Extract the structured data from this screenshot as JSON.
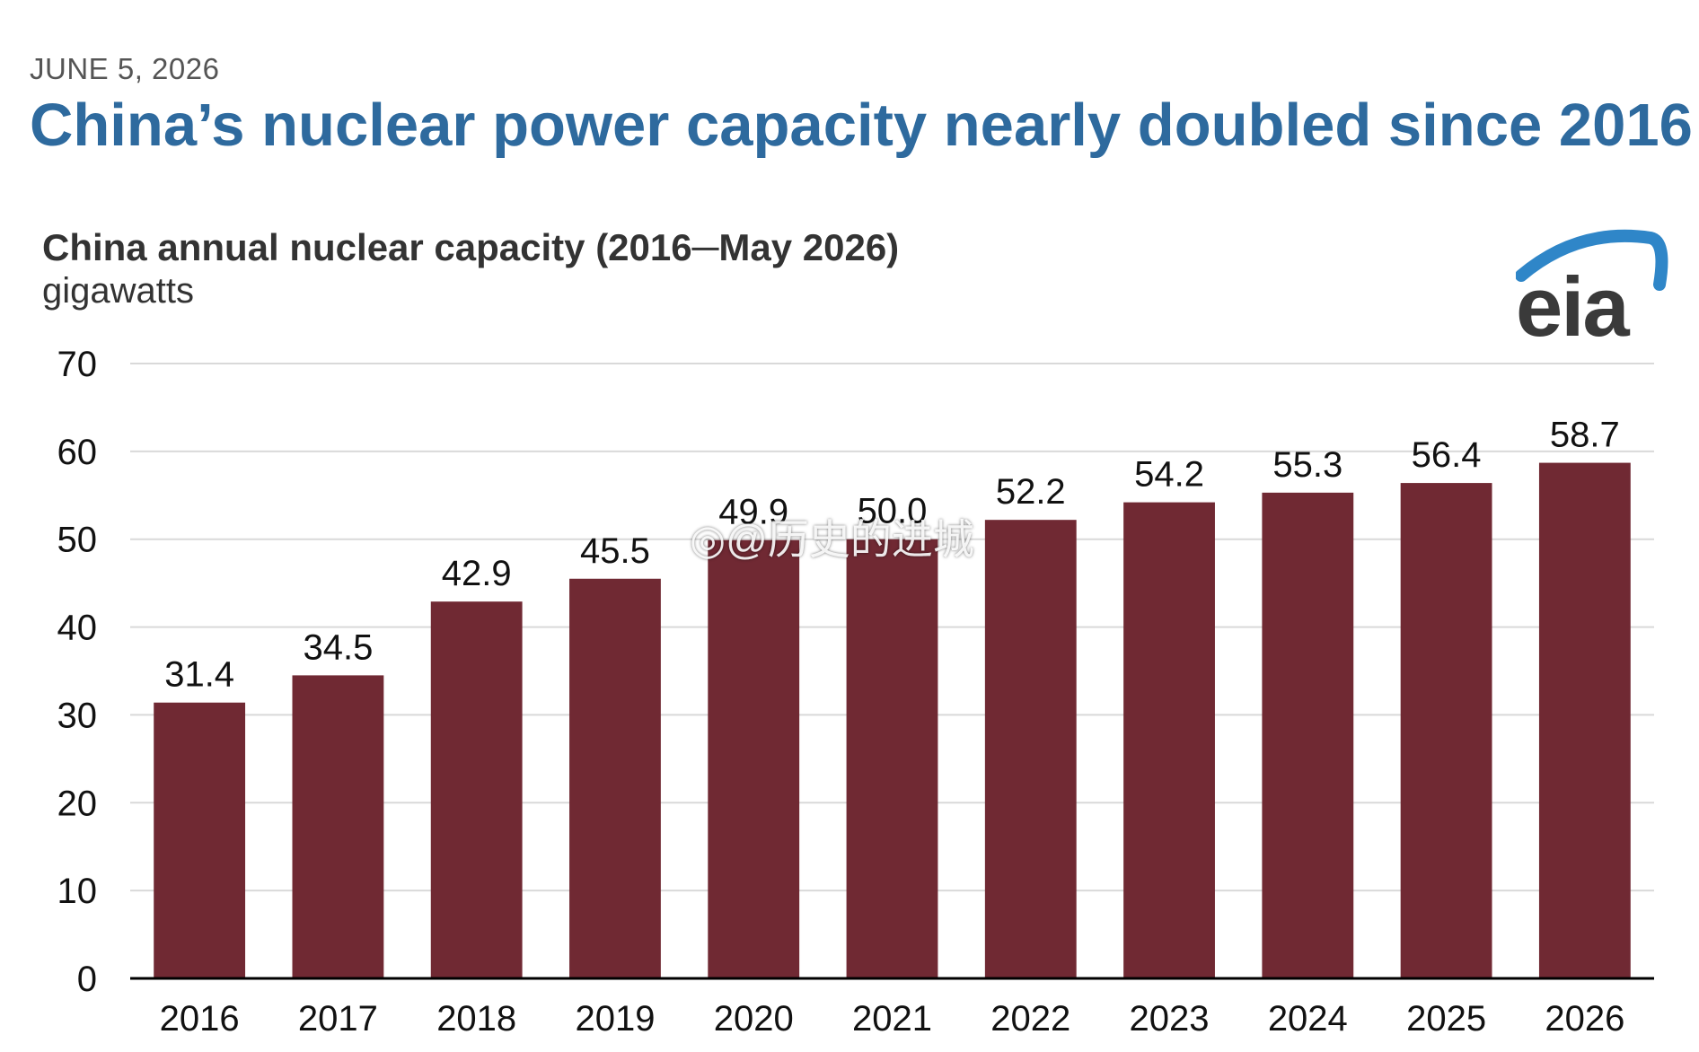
{
  "header": {
    "date": "JUNE 5, 2026",
    "headline": "China’s nuclear power capacity nearly doubled since 2016"
  },
  "logo": {
    "text": "eia",
    "icon": "eia-arc-logo"
  },
  "watermark": {
    "text": "@历史的进城",
    "icon": "weibo-icon"
  },
  "colors": {
    "bar": "#702933",
    "headline": "#2e6a9e",
    "grid": "#d9d9d9",
    "axis": "#000000",
    "logo_arc": "#2f86c8"
  },
  "chart_data": {
    "type": "bar",
    "title": "China annual nuclear capacity (2016─May 2026)",
    "ylabel": "gigawatts",
    "xlabel": "",
    "categories": [
      "2016",
      "2017",
      "2018",
      "2019",
      "2020",
      "2021",
      "2022",
      "2023",
      "2024",
      "2025",
      "2026"
    ],
    "values": [
      31.4,
      34.5,
      42.9,
      45.5,
      49.9,
      50.0,
      52.2,
      54.2,
      55.3,
      56.4,
      58.7
    ],
    "value_labels": [
      "31.4",
      "34.5",
      "42.9",
      "45.5",
      "49.9",
      "50.0",
      "52.2",
      "54.2",
      "55.3",
      "56.4",
      "58.7"
    ],
    "ylim": [
      0,
      70
    ],
    "yticks": [
      0,
      10,
      20,
      30,
      40,
      50,
      60,
      70
    ],
    "grid": true,
    "legend": "none"
  }
}
